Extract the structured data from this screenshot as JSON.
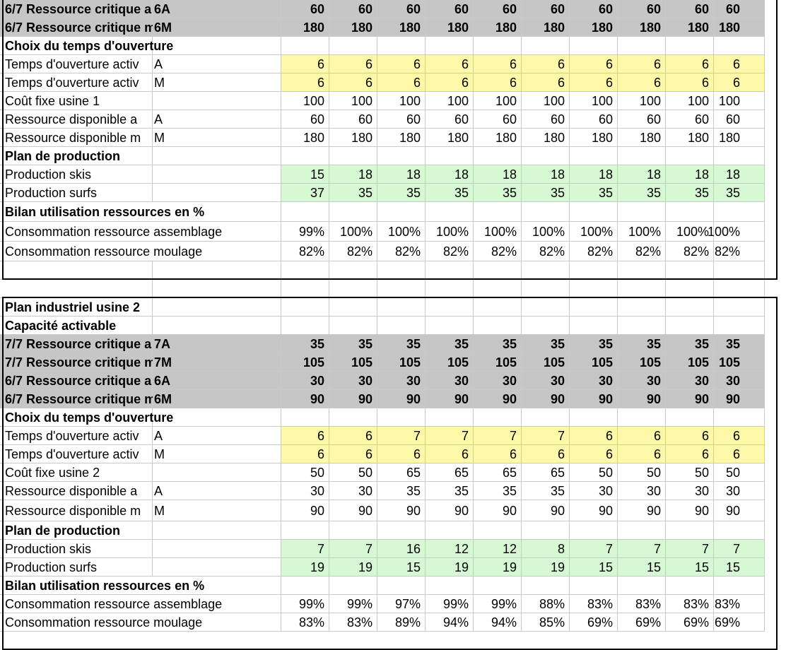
{
  "sheet": {
    "block1": {
      "rows": [
        {
          "label": "6/7 Ressource critique a",
          "sub": "6A",
          "style": "gray bold",
          "values": [
            "60",
            "60",
            "60",
            "60",
            "60",
            "60",
            "60",
            "60",
            "60",
            "60"
          ]
        },
        {
          "label": "6/7 Ressource critique m",
          "sub": "6M",
          "style": "gray bold",
          "values": [
            "180",
            "180",
            "180",
            "180",
            "180",
            "180",
            "180",
            "180",
            "180",
            "180"
          ]
        },
        {
          "label": "Choix du temps d'ouverture",
          "sub": "",
          "style": "head",
          "values": [
            "",
            "",
            "",
            "",
            "",
            "",
            "",
            "",
            "",
            ""
          ]
        },
        {
          "label": "Temps d'ouverture activ",
          "sub": "A",
          "style": "yellow",
          "values": [
            "6",
            "6",
            "6",
            "6",
            "6",
            "6",
            "6",
            "6",
            "6",
            "6"
          ]
        },
        {
          "label": "Temps d'ouverture activ",
          "sub": "M",
          "style": "yellow",
          "values": [
            "6",
            "6",
            "6",
            "6",
            "6",
            "6",
            "6",
            "6",
            "6",
            "6"
          ]
        },
        {
          "label": "Coût fixe usine 1",
          "sub": "",
          "style": "",
          "values": [
            "100",
            "100",
            "100",
            "100",
            "100",
            "100",
            "100",
            "100",
            "100",
            "100"
          ]
        },
        {
          "label": "Ressource disponible a",
          "sub": "A",
          "style": "",
          "values": [
            "60",
            "60",
            "60",
            "60",
            "60",
            "60",
            "60",
            "60",
            "60",
            "60"
          ]
        },
        {
          "label": "Ressource disponible m",
          "sub": "M",
          "style": "",
          "values": [
            "180",
            "180",
            "180",
            "180",
            "180",
            "180",
            "180",
            "180",
            "180",
            "180"
          ]
        },
        {
          "label": "Plan de production",
          "sub": "",
          "style": "head",
          "values": [
            "",
            "",
            "",
            "",
            "",
            "",
            "",
            "",
            "",
            ""
          ]
        },
        {
          "label": "Production skis",
          "sub": "",
          "style": "green",
          "values": [
            "15",
            "18",
            "18",
            "18",
            "18",
            "18",
            "18",
            "18",
            "18",
            "18"
          ]
        },
        {
          "label": "Production surfs",
          "sub": "",
          "style": "green",
          "values": [
            "37",
            "35",
            "35",
            "35",
            "35",
            "35",
            "35",
            "35",
            "35",
            "35"
          ]
        },
        {
          "label": "Bilan utilisation ressources en %",
          "sub": "",
          "style": "head wide",
          "values": [
            "",
            "",
            "",
            "",
            "",
            "",
            "",
            "",
            "",
            ""
          ]
        },
        {
          "label": "Consommation ressource assemblage",
          "sub": "",
          "style": "wide",
          "values": [
            "99%",
            "100%",
            "100%",
            "100%",
            "100%",
            "100%",
            "100%",
            "100%",
            "100%",
            "100%"
          ]
        },
        {
          "label": "Consommation ressource moulage",
          "sub": "",
          "style": "wide",
          "values": [
            "82%",
            "82%",
            "82%",
            "82%",
            "82%",
            "82%",
            "82%",
            "82%",
            "82%",
            "82%"
          ]
        },
        {
          "label": "",
          "sub": "",
          "style": "",
          "values": [
            "",
            "",
            "",
            "",
            "",
            "",
            "",
            "",
            "",
            ""
          ]
        }
      ]
    },
    "block2": {
      "rows": [
        {
          "label": "Plan industriel usine 2",
          "sub": "",
          "style": "head",
          "values": [
            "",
            "",
            "",
            "",
            "",
            "",
            "",
            "",
            "",
            ""
          ]
        },
        {
          "label": "Capacité activable",
          "sub": "",
          "style": "head",
          "values": [
            "",
            "",
            "",
            "",
            "",
            "",
            "",
            "",
            "",
            ""
          ]
        },
        {
          "label": "7/7 Ressource critique a",
          "sub": "7A",
          "style": "gray bold",
          "values": [
            "35",
            "35",
            "35",
            "35",
            "35",
            "35",
            "35",
            "35",
            "35",
            "35"
          ]
        },
        {
          "label": "7/7 Ressource critique m",
          "sub": "7M",
          "style": "gray bold",
          "values": [
            "105",
            "105",
            "105",
            "105",
            "105",
            "105",
            "105",
            "105",
            "105",
            "105"
          ]
        },
        {
          "label": "6/7 Ressource critique a",
          "sub": "6A",
          "style": "gray bold",
          "values": [
            "30",
            "30",
            "30",
            "30",
            "30",
            "30",
            "30",
            "30",
            "30",
            "30"
          ]
        },
        {
          "label": "6/7 Ressource critique m",
          "sub": "6M",
          "style": "gray bold",
          "values": [
            "90",
            "90",
            "90",
            "90",
            "90",
            "90",
            "90",
            "90",
            "90",
            "90"
          ]
        },
        {
          "label": "Choix du temps d'ouverture",
          "sub": "",
          "style": "head",
          "values": [
            "",
            "",
            "",
            "",
            "",
            "",
            "",
            "",
            "",
            ""
          ]
        },
        {
          "label": "Temps d'ouverture activ",
          "sub": "A",
          "style": "yellow",
          "values": [
            "6",
            "6",
            "7",
            "7",
            "7",
            "7",
            "6",
            "6",
            "6",
            "6"
          ]
        },
        {
          "label": "Temps d'ouverture activ",
          "sub": "M",
          "style": "yellow",
          "values": [
            "6",
            "6",
            "6",
            "6",
            "6",
            "6",
            "6",
            "6",
            "6",
            "6"
          ]
        },
        {
          "label": "Coût fixe usine 2",
          "sub": "",
          "style": "",
          "values": [
            "50",
            "50",
            "65",
            "65",
            "65",
            "65",
            "50",
            "50",
            "50",
            "50"
          ]
        },
        {
          "label": "Ressource disponible a",
          "sub": "A",
          "style": "",
          "values": [
            "30",
            "30",
            "35",
            "35",
            "35",
            "35",
            "30",
            "30",
            "30",
            "30"
          ]
        },
        {
          "label": "Ressource disponible m",
          "sub": "M",
          "style": "",
          "values": [
            "90",
            "90",
            "90",
            "90",
            "90",
            "90",
            "90",
            "90",
            "90",
            "90"
          ]
        },
        {
          "label": "Plan de production",
          "sub": "",
          "style": "head",
          "values": [
            "",
            "",
            "",
            "",
            "",
            "",
            "",
            "",
            "",
            ""
          ]
        },
        {
          "label": "Production skis",
          "sub": "",
          "style": "green",
          "values": [
            "7",
            "7",
            "16",
            "12",
            "12",
            "8",
            "7",
            "7",
            "7",
            "7"
          ]
        },
        {
          "label": "Production surfs",
          "sub": "",
          "style": "green",
          "values": [
            "19",
            "19",
            "15",
            "19",
            "19",
            "19",
            "15",
            "15",
            "15",
            "15"
          ]
        },
        {
          "label": "Bilan utilisation ressources en %",
          "sub": "",
          "style": "head wide",
          "values": [
            "",
            "",
            "",
            "",
            "",
            "",
            "",
            "",
            "",
            ""
          ]
        },
        {
          "label": "Consommation ressource assemblage",
          "sub": "",
          "style": "wide",
          "values": [
            "99%",
            "99%",
            "97%",
            "99%",
            "99%",
            "88%",
            "83%",
            "83%",
            "83%",
            "83%"
          ]
        },
        {
          "label": "Consommation ressource moulage",
          "sub": "",
          "style": "wide",
          "values": [
            "83%",
            "83%",
            "89%",
            "94%",
            "94%",
            "85%",
            "69%",
            "69%",
            "69%",
            "69%"
          ]
        }
      ]
    }
  }
}
